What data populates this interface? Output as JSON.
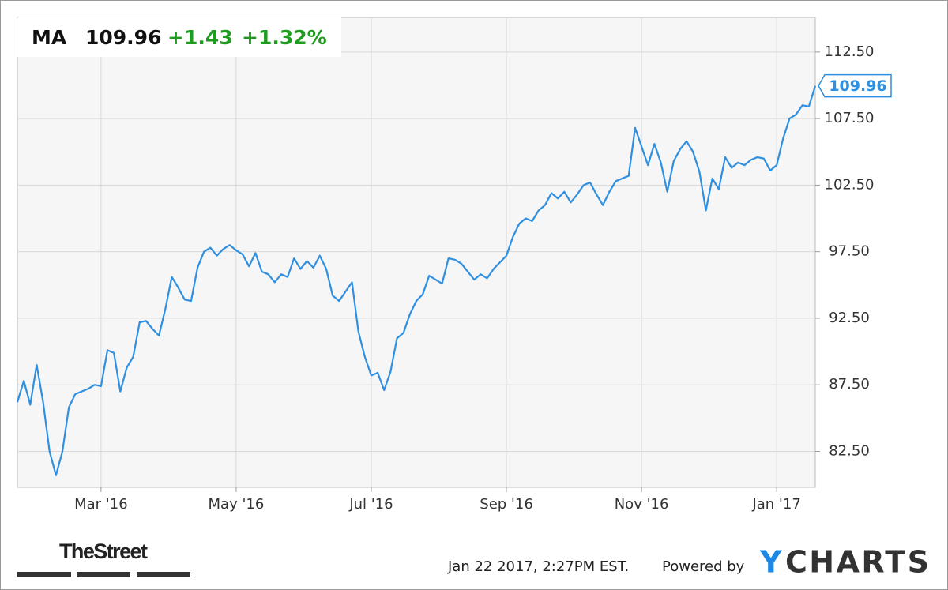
{
  "header": {
    "ticker": "MA",
    "price": "109.96",
    "change": "+1.43",
    "change_pct": "+1.32%"
  },
  "chart_data": {
    "type": "line",
    "color": "#2f8fe0",
    "grid": true,
    "categories": [
      null,
      null,
      null,
      null,
      null,
      null,
      null,
      null,
      null,
      null,
      null,
      null,
      null,
      "Mar '16",
      null,
      null,
      null,
      null,
      null,
      null,
      null,
      null,
      null,
      null,
      null,
      null,
      null,
      null,
      null,
      null,
      null,
      null,
      null,
      null,
      "May '16",
      null,
      null,
      null,
      null,
      null,
      null,
      null,
      null,
      null,
      null,
      null,
      null,
      null,
      null,
      null,
      null,
      null,
      null,
      null,
      null,
      "Jul '16",
      null,
      null,
      null,
      null,
      null,
      null,
      null,
      null,
      null,
      null,
      null,
      null,
      null,
      null,
      null,
      null,
      null,
      null,
      null,
      null,
      "Sep '16",
      null,
      null,
      null,
      null,
      null,
      null,
      null,
      null,
      null,
      null,
      null,
      null,
      null,
      null,
      null,
      null,
      null,
      null,
      null,
      null,
      "Nov '16",
      null,
      null,
      null,
      null,
      null,
      null,
      null,
      null,
      null,
      null,
      null,
      null,
      null,
      null,
      null,
      null,
      null,
      null,
      null,
      null,
      "Jan '17",
      null,
      null,
      null,
      null,
      null,
      null
    ],
    "values": [
      86.2,
      87.8,
      86.0,
      89.0,
      86.2,
      82.5,
      80.7,
      82.5,
      85.8,
      86.8,
      87.0,
      87.2,
      87.5,
      87.4,
      90.1,
      89.9,
      87.0,
      88.8,
      89.6,
      92.2,
      92.3,
      91.7,
      91.2,
      93.2,
      95.6,
      94.8,
      93.9,
      93.8,
      96.3,
      97.5,
      97.8,
      97.2,
      97.7,
      98.0,
      97.6,
      97.3,
      96.4,
      97.4,
      96.0,
      95.8,
      95.2,
      95.8,
      95.6,
      97.0,
      96.2,
      96.8,
      96.3,
      97.2,
      96.2,
      94.2,
      93.8,
      94.5,
      95.2,
      91.5,
      89.6,
      88.2,
      88.4,
      87.1,
      88.5,
      91.0,
      91.4,
      92.8,
      93.8,
      94.3,
      95.7,
      95.4,
      95.1,
      97.0,
      96.9,
      96.6,
      96.0,
      95.4,
      95.8,
      95.5,
      96.2,
      96.7,
      97.2,
      98.6,
      99.6,
      100.0,
      99.8,
      100.6,
      101.0,
      101.9,
      101.5,
      102.0,
      101.2,
      101.8,
      102.5,
      102.7,
      101.8,
      101.0,
      102.0,
      102.8,
      103.0,
      103.2,
      106.8,
      105.4,
      104.0,
      105.6,
      104.2,
      102.0,
      104.3,
      105.2,
      105.8,
      105.0,
      103.5,
      100.6,
      103.0,
      102.2,
      104.6,
      103.8,
      104.2,
      104.0,
      104.4,
      104.6,
      104.5,
      103.6,
      104.0,
      106.0,
      107.5,
      107.8,
      108.5,
      108.4,
      109.96
    ],
    "ylim": [
      79.8,
      115.1
    ],
    "yticks": [
      {
        "value": 82.5,
        "label": "82.50"
      },
      {
        "value": 87.5,
        "label": "87.50"
      },
      {
        "value": 92.5,
        "label": "92.50"
      },
      {
        "value": 97.5,
        "label": "97.50"
      },
      {
        "value": 102.5,
        "label": "102.50"
      },
      {
        "value": 107.5,
        "label": "107.50"
      },
      {
        "value": 112.5,
        "label": "112.50"
      }
    ]
  },
  "footer": {
    "brand": "TheStreet",
    "timestamp": "Jan 22 2017, 2:27PM EST.",
    "powered": "Powered by",
    "logo_y": "Y",
    "logo_rest": "CHARTS"
  }
}
